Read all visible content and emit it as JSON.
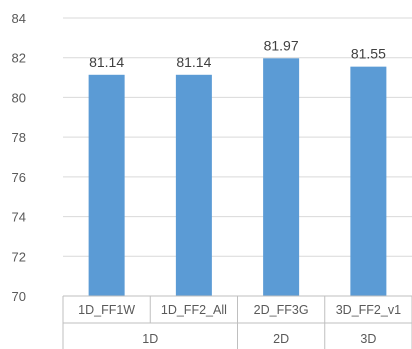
{
  "chart_data": {
    "type": "bar",
    "title": "",
    "xlabel": "",
    "ylabel": "",
    "ylim": [
      70,
      84
    ],
    "yticks": [
      70,
      72,
      74,
      76,
      78,
      80,
      82,
      84
    ],
    "grid": true,
    "legend": "none",
    "categories": [
      "1D_FF1W",
      "1D_FF2_All",
      "2D_FF3G",
      "3D_FF2_v1"
    ],
    "groups": [
      {
        "label": "1D",
        "categories": [
          "1D_FF1W",
          "1D_FF2_All"
        ]
      },
      {
        "label": "2D",
        "categories": [
          "2D_FF3G"
        ]
      },
      {
        "label": "3D",
        "categories": [
          "3D_FF2_v1"
        ]
      }
    ],
    "values": [
      81.14,
      81.14,
      81.97,
      81.55
    ],
    "data_labels": [
      "81.14",
      "81.14",
      "81.97",
      "81.55"
    ],
    "bar_color": "#5b9bd5",
    "grid_color": "#d9d9d9",
    "axis_color": "#bfbfbf"
  }
}
